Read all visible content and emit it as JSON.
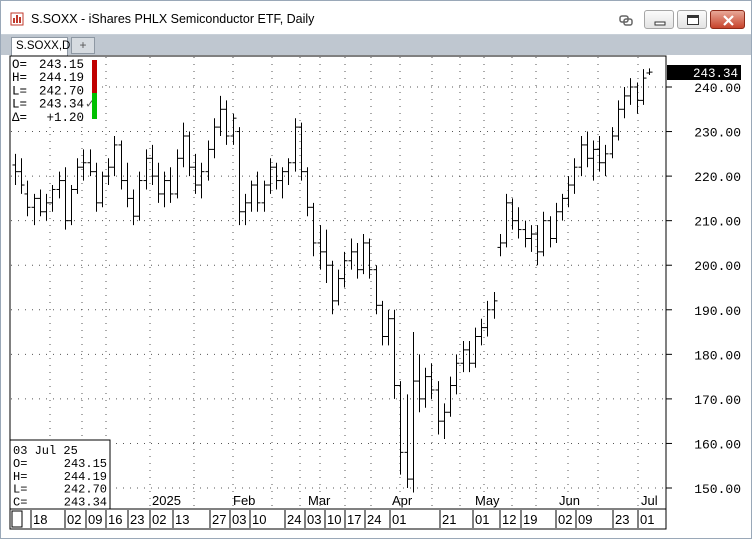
{
  "window": {
    "title": "S.SOXX - iShares PHLX Semiconductor ETF, Daily",
    "buttons": {
      "minimize": "minimize",
      "maximize": "maximize",
      "close": "close"
    }
  },
  "tabs": {
    "active": "S.SOXX,D",
    "add": "+"
  },
  "quote": {
    "rows": [
      {
        "label": "O=",
        "value": "243.15"
      },
      {
        "label": "H=",
        "value": "244.19"
      },
      {
        "label": "L=",
        "value": "242.70"
      },
      {
        "label": "L=",
        "value": "243.34",
        "mark": "✓"
      },
      {
        "label": "Δ=",
        "value": "+1.20"
      }
    ]
  },
  "data_window": {
    "date": "03 Jul 25",
    "rows": [
      {
        "label": "O=",
        "value": "243.15"
      },
      {
        "label": "H=",
        "value": "244.19"
      },
      {
        "label": "L=",
        "value": "242.70"
      },
      {
        "label": "C=",
        "value": "243.34"
      }
    ]
  },
  "price_axis": {
    "last_price": "243.34",
    "ticks": [
      "240.00",
      "230.00",
      "220.00",
      "210.00",
      "200.00",
      "190.00",
      "180.00",
      "170.00",
      "160.00",
      "150.00"
    ]
  },
  "time_axis": {
    "day_labels": [
      "18",
      "02",
      "09",
      "16",
      "23",
      "02",
      "13",
      "27",
      "03",
      "10",
      "24",
      "03",
      "10",
      "17",
      "24",
      "01",
      "21",
      "01",
      "12",
      "19",
      "02",
      "09",
      "23",
      "01"
    ],
    "month_labels": [
      "2025",
      "Feb",
      "Mar",
      "Apr",
      "May",
      "Jun",
      "Jul"
    ]
  },
  "chart_data": {
    "type": "ohlc",
    "symbol": "S.SOXX",
    "interval": "Daily",
    "ylim": [
      145,
      248
    ],
    "grid": true,
    "bars": [
      [
        222.5,
        225.0,
        218.0,
        221.0
      ],
      [
        221.0,
        224.0,
        216.0,
        218.0
      ],
      [
        216.0,
        219.0,
        211.0,
        213.0
      ],
      [
        213.0,
        216.0,
        209.0,
        215.0
      ],
      [
        215.0,
        217.0,
        211.0,
        212.0
      ],
      [
        212.0,
        216.0,
        210.0,
        214.0
      ],
      [
        214.0,
        218.0,
        212.0,
        217.0
      ],
      [
        217.0,
        221.0,
        215.0,
        219.0
      ],
      [
        219.0,
        222.0,
        208.0,
        210.0
      ],
      [
        210.0,
        218.0,
        209.0,
        217.0
      ],
      [
        217.0,
        224.0,
        216.0,
        222.0
      ],
      [
        222.0,
        226.0,
        219.0,
        223.0
      ],
      [
        223.0,
        226.0,
        220.0,
        221.0
      ],
      [
        221.0,
        223.0,
        212.0,
        214.0
      ],
      [
        214.0,
        221.0,
        213.0,
        220.0
      ],
      [
        220.0,
        224.0,
        218.0,
        222.0
      ],
      [
        222.0,
        229.0,
        220.0,
        227.0
      ],
      [
        227.0,
        228.0,
        217.0,
        219.0
      ],
      [
        219.0,
        223.0,
        213.0,
        215.0
      ],
      [
        215.0,
        217.0,
        209.0,
        211.0
      ],
      [
        211.0,
        221.0,
        210.0,
        219.0
      ],
      [
        219.0,
        226.0,
        217.0,
        224.0
      ],
      [
        224.0,
        227.0,
        218.0,
        220.0
      ],
      [
        220.0,
        223.0,
        214.0,
        216.0
      ],
      [
        216.0,
        221.0,
        213.0,
        219.0
      ],
      [
        219.0,
        222.0,
        214.0,
        216.0
      ],
      [
        216.0,
        226.0,
        215.0,
        224.0
      ],
      [
        224.0,
        232.0,
        222.0,
        229.0
      ],
      [
        229.0,
        230.0,
        220.0,
        222.0
      ],
      [
        222.0,
        225.0,
        216.0,
        218.0
      ],
      [
        218.0,
        223.0,
        215.0,
        221.0
      ],
      [
        221.0,
        228.0,
        219.0,
        226.0
      ],
      [
        226.0,
        233.0,
        224.0,
        231.0
      ],
      [
        231.0,
        238.0,
        229.0,
        235.0
      ],
      [
        235.0,
        237.0,
        227.0,
        229.0
      ],
      [
        229.0,
        234.0,
        227.0,
        233.0
      ],
      [
        230.0,
        231.0,
        209.0,
        212.0
      ],
      [
        212.0,
        216.0,
        209.0,
        214.0
      ],
      [
        214.0,
        219.0,
        212.0,
        218.0
      ],
      [
        218.0,
        221.0,
        212.0,
        214.0
      ],
      [
        214.0,
        219.0,
        212.0,
        218.0
      ],
      [
        218.0,
        224.0,
        216.0,
        222.0
      ],
      [
        222.0,
        223.0,
        217.0,
        219.0
      ],
      [
        219.0,
        222.0,
        215.0,
        221.0
      ],
      [
        221.0,
        224.0,
        218.0,
        223.0
      ],
      [
        223.0,
        233.0,
        221.0,
        231.0
      ],
      [
        231.0,
        232.0,
        219.0,
        221.0
      ],
      [
        221.0,
        222.0,
        211.0,
        213.0
      ],
      [
        213.0,
        214.0,
        202.0,
        205.0
      ],
      [
        205.0,
        209.0,
        199.0,
        203.0
      ],
      [
        203.0,
        208.0,
        196.0,
        200.0
      ],
      [
        200.0,
        201.0,
        189.0,
        192.0
      ],
      [
        192.0,
        199.0,
        191.0,
        197.0
      ],
      [
        197.0,
        203.0,
        195.0,
        201.0
      ],
      [
        201.0,
        206.0,
        199.0,
        203.0
      ],
      [
        203.0,
        205.0,
        197.0,
        199.0
      ],
      [
        199.0,
        207.0,
        198.0,
        205.0
      ],
      [
        205.0,
        206.0,
        197.0,
        199.0
      ],
      [
        199.0,
        200.0,
        189.0,
        191.0
      ],
      [
        191.0,
        192.0,
        182.0,
        184.0
      ],
      [
        184.0,
        190.0,
        182.0,
        188.0
      ],
      [
        188.0,
        190.0,
        170.0,
        173.0
      ],
      [
        173.0,
        174.0,
        153.0,
        158.0
      ],
      [
        158.0,
        171.0,
        150.0,
        152.0
      ],
      [
        152.0,
        185.0,
        149.0,
        174.0
      ],
      [
        174.0,
        180.0,
        167.0,
        170.0
      ],
      [
        170.0,
        177.0,
        168.0,
        175.0
      ],
      [
        175.0,
        178.0,
        170.0,
        172.0
      ],
      [
        172.0,
        174.0,
        162.0,
        165.0
      ],
      [
        165.0,
        169.0,
        161.0,
        167.0
      ],
      [
        167.0,
        175.0,
        166.0,
        173.0
      ],
      [
        173.0,
        180.0,
        171.0,
        178.0
      ],
      [
        178.0,
        183.0,
        176.0,
        181.0
      ],
      [
        181.0,
        183.0,
        176.0,
        178.0
      ],
      [
        178.0,
        186.0,
        177.0,
        184.0
      ],
      [
        184.0,
        188.0,
        182.0,
        186.0
      ],
      [
        186.0,
        192.0,
        184.0,
        190.0
      ],
      [
        190.0,
        194.0,
        188.0,
        192.0
      ],
      [
        204.0,
        207.0,
        202.0,
        205.0
      ],
      [
        205.0,
        216.0,
        204.0,
        214.0
      ],
      [
        214.0,
        215.0,
        208.0,
        210.0
      ],
      [
        210.0,
        213.0,
        206.0,
        208.0
      ],
      [
        208.0,
        210.0,
        204.0,
        206.0
      ],
      [
        206.0,
        209.0,
        203.0,
        207.0
      ],
      [
        207.0,
        209.0,
        200.0,
        203.0
      ],
      [
        203.0,
        212.0,
        202.0,
        210.0
      ],
      [
        210.0,
        211.0,
        204.0,
        206.0
      ],
      [
        206.0,
        214.0,
        205.0,
        212.0
      ],
      [
        212.0,
        216.0,
        210.0,
        215.0
      ],
      [
        215.0,
        220.0,
        213.0,
        218.0
      ],
      [
        218.0,
        224.0,
        216.0,
        222.0
      ],
      [
        222.0,
        229.0,
        220.0,
        227.0
      ],
      [
        227.0,
        230.0,
        222.0,
        224.0
      ],
      [
        224.0,
        228.0,
        219.0,
        226.0
      ],
      [
        226.0,
        229.0,
        221.0,
        223.0
      ],
      [
        223.0,
        227.0,
        220.0,
        225.0
      ],
      [
        225.0,
        231.0,
        224.0,
        229.0
      ],
      [
        229.0,
        237.0,
        228.0,
        235.0
      ],
      [
        235.0,
        240.0,
        233.0,
        238.0
      ],
      [
        238.0,
        242.0,
        236.0,
        240.0
      ],
      [
        240.0,
        241.0,
        234.0,
        237.0
      ],
      [
        237.0,
        244.0,
        236.0,
        242.0
      ],
      [
        243.15,
        244.19,
        242.7,
        243.34
      ]
    ]
  },
  "colors": {
    "bar": "#000000",
    "grid": "#555555",
    "price_tag_bg": "#000000",
    "price_tag_text": "#ffffff",
    "up_indicator": "#00c000",
    "down_indicator": "#c00000",
    "tab_bar": "#bfc7d0"
  }
}
